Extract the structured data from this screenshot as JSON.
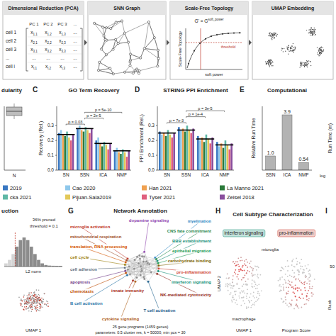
{
  "pipeline": {
    "steps": [
      {
        "title": "Dimensional Reduction (PCA)"
      },
      {
        "title": "SNN Graph"
      },
      {
        "title": "Scale-Free Topology"
      },
      {
        "title": "UMAP Embedding"
      }
    ],
    "matrix": {
      "columns": [
        "PC 1",
        "PC 2",
        "PC 3",
        "..."
      ],
      "rows": [
        "cell 1",
        "cell 2",
        "cell 3",
        "...",
        "cell i"
      ],
      "cells": [
        [
          {
            "base": "x",
            "sub": "1,1"
          },
          {
            "base": "x",
            "sub": "1,2"
          },
          {
            "base": "x",
            "sub": "1,3"
          },
          "..."
        ],
        [
          {
            "base": "x",
            "sub": "2,1"
          },
          {
            "base": "x",
            "sub": "2,2"
          },
          {
            "base": "x",
            "sub": "2,3"
          },
          "..."
        ],
        [
          {
            "base": "x",
            "sub": "3,1"
          },
          {
            "base": "x",
            "sub": "3,2"
          },
          {
            "base": "x",
            "sub": "3,3"
          },
          "..."
        ],
        [
          "...",
          "...",
          "...",
          "..."
        ],
        [
          {
            "base": "x",
            "sub": "i,1"
          },
          {
            "base": "x",
            "sub": "i,2"
          },
          {
            "base": "x",
            "sub": "i,3"
          },
          "..."
        ]
      ]
    },
    "scale_free": {
      "formula_base": "G' = G",
      "formula_sup": "soft_power",
      "y_label": "Scale-Free Topology",
      "x_label": "soft power",
      "threshold_label": "threshold"
    }
  },
  "panel_b": {
    "title": "dularity",
    "tick": "N"
  },
  "chart_data": [
    {
      "type": "bar",
      "letter": "C",
      "title": "GO Term Recovery",
      "y_label": "Recovery (Rel.)",
      "categories": [
        "SN",
        "SSN",
        "ICA",
        "NMF"
      ],
      "series": [
        {
          "name": "2019",
          "color": "#3a78c2",
          "values": [
            0.25,
            0.28,
            0.2,
            0.13
          ]
        },
        {
          "name": "Cao 2020",
          "color": "#8fc8eb",
          "values": [
            0.27,
            0.3,
            0.22,
            0.15
          ]
        },
        {
          "name": "Han 2021",
          "color": "#f0a150",
          "values": [
            0.24,
            0.27,
            0.18,
            0.12
          ]
        },
        {
          "name": "La Manno 2021",
          "color": "#2b7a3b",
          "values": [
            0.23,
            0.26,
            0.16,
            0.11
          ]
        },
        {
          "name": "cka 2021",
          "color": "#5fb8a6",
          "values": [
            0.26,
            0.29,
            0.19,
            0.14
          ]
        },
        {
          "name": "Pijuan-Sala2019",
          "color": "#e3c95a",
          "values": [
            0.22,
            0.27,
            0.17,
            0.12
          ]
        },
        {
          "name": "Tyser 2021",
          "color": "#e0607e",
          "values": [
            0.2,
            0.25,
            0.14,
            0.09
          ]
        },
        {
          "name": "Zeisel 2018",
          "color": "#8a4f9e",
          "values": [
            0.24,
            0.28,
            0.18,
            0.13
          ]
        }
      ],
      "means": [
        0.24,
        0.28,
        0.18,
        0.13
      ],
      "annotations": [
        {
          "text": "p = 0.03",
          "from": 0,
          "to": 1,
          "y": 0.31
        },
        {
          "text": "p = 2e-5",
          "from": 1,
          "to": 2,
          "y": 0.35
        },
        {
          "text": "p = 5e-10",
          "from": 1,
          "to": 3,
          "y": 0.39
        }
      ],
      "ylim": [
        0,
        0.43
      ],
      "yticks": [
        {
          "value": 0,
          "label": "0.0"
        },
        0.1,
        0.2,
        0.3
      ],
      "grid": false,
      "legend": "bottom"
    },
    {
      "type": "bar",
      "letter": "D",
      "title": "STRING PPI Enrichment",
      "y_label": "PPI Enrichment (Rel.)",
      "categories": [
        "SN",
        "SSN",
        "ICA",
        "NMF"
      ],
      "series": [
        {
          "color": "#3a78c2",
          "values": [
            0.26,
            0.29,
            0.23,
            0.19
          ]
        },
        {
          "color": "#8fc8eb",
          "values": [
            0.24,
            0.27,
            0.2,
            0.16
          ]
        },
        {
          "color": "#f0a150",
          "values": [
            0.25,
            0.28,
            0.22,
            0.18
          ]
        },
        {
          "color": "#2b7a3b",
          "values": [
            0.23,
            0.26,
            0.19,
            0.15
          ]
        },
        {
          "color": "#5fb8a6",
          "values": [
            0.27,
            0.3,
            0.24,
            0.2
          ]
        },
        {
          "color": "#e3c95a",
          "values": [
            0.24,
            0.27,
            0.21,
            0.17
          ]
        },
        {
          "color": "#e0607e",
          "values": [
            0.22,
            0.25,
            0.18,
            0.14
          ]
        },
        {
          "color": "#8a4f9e",
          "values": [
            0.25,
            0.28,
            0.22,
            0.18
          ]
        }
      ],
      "means": [
        0.25,
        0.27,
        0.21,
        0.17
      ],
      "annotations": [
        {
          "text": "p = 7e-3",
          "from": 0,
          "to": 1,
          "y": 0.32
        },
        {
          "text": "p = 1e-4",
          "from": 1,
          "to": 2,
          "y": 0.36
        },
        {
          "text": "p = 3e-5",
          "from": 1,
          "to": 3,
          "y": 0.4
        }
      ],
      "ylim": [
        0,
        0.43
      ],
      "yticks": [
        {
          "value": 0,
          "label": "0.0"
        },
        0.1,
        0.2,
        0.3
      ],
      "grid": false
    },
    {
      "type": "bar",
      "letter": "E",
      "title": "Computational",
      "y_label": "Relative Run Time",
      "categories": [
        "SSN",
        "ICA",
        "NMF"
      ],
      "values": [
        1.0,
        3.9,
        0.54
      ],
      "value_labels": [
        "1.0",
        "3.9",
        "0.54"
      ],
      "color": "#b3b3b3",
      "data_labels": true,
      "tick_labels": "x",
      "ylim": [
        0,
        4.5
      ]
    }
  ],
  "panel_f": {
    "y_label": "Run Time (m)",
    "label": "log"
  },
  "panel_reduction": {
    "title": "uction",
    "pruned": "36% pruned",
    "threshold": "threshold = 0.1",
    "x_label": "L2 norm",
    "umap_x": "UMAP 1"
  },
  "network": {
    "letter": "G",
    "title": "Network Annotation",
    "nodes": [
      {
        "label": "microglia activation",
        "color": "#c0392b"
      },
      {
        "label": "dopamine signaling",
        "color": "#8e44ad"
      },
      {
        "label": "myelination",
        "color": "#2e86c1"
      },
      {
        "label": "mitochondrial respiration",
        "color": "#a0522d"
      },
      {
        "label": "CNS fate commitment",
        "color": "#1e8449"
      },
      {
        "label": "BBB establishment",
        "color": "#138d75"
      },
      {
        "label": "translation, RNA processing",
        "color": "#d35400"
      },
      {
        "label": "epithelial migration",
        "color": "#229954"
      },
      {
        "label": "cell cycle",
        "color": "#9a7d0a"
      },
      {
        "label": "carbohydrate binding",
        "color": "#7d6608"
      },
      {
        "label": "cell adhesion",
        "color": "#5d6d7e"
      },
      {
        "label": "pro-inflammation",
        "color": "#cb4335"
      },
      {
        "label": "apoptosis",
        "color": "#6c3483"
      },
      {
        "label": "interferon signaling",
        "color": "#148f77"
      },
      {
        "label": "chemotaxis",
        "color": "#ba4a00"
      },
      {
        "label": "innate immunity",
        "color": "#a93226"
      },
      {
        "label": "NK-mediated cytotoxicity",
        "color": "#922b21"
      },
      {
        "label": "B cell activation",
        "color": "#2874a6"
      },
      {
        "label": "T cell activation",
        "color": "#1f618d"
      },
      {
        "label": "cytokine signaling",
        "color": "#af601a"
      }
    ],
    "footer": [
      "25 gene programs (1459 genes)",
      "parameters: 0.5 cluster res, k = 50000, min pcs = 30"
    ]
  },
  "subtypes": {
    "letter": "H",
    "title": "Cell Subtype Characterization",
    "programs": [
      {
        "label": "interferon signaling",
        "color": "#148f77"
      },
      {
        "label": "pro-inflammation",
        "color": "#cb4335"
      }
    ],
    "cell_labels": [
      "microglia",
      "macrophage"
    ],
    "x_label": "UMAP 1",
    "y_label": "UMAP 2",
    "score_label": "Program Score"
  },
  "panel_i": {
    "letter": "I",
    "tick": "50",
    "label": "Rank"
  }
}
